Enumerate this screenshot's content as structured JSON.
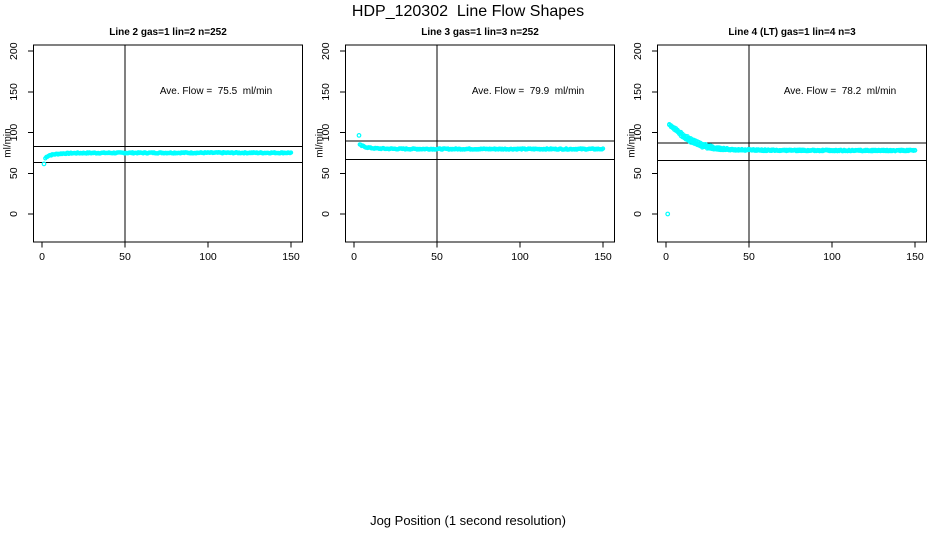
{
  "figure": {
    "title": "HDP_120302  Line Flow Shapes",
    "xlabel": "Jog Position (1 second resolution)",
    "background": "#FFFFFF",
    "point_color": "#00FFFF",
    "axis_color": "#000000"
  },
  "chart_data": [
    {
      "type": "scatter",
      "id": "line2",
      "title": "Line 2 gas=1 lin=2 n=252",
      "n": 252,
      "annotation": "Ave. Flow =  75.5  ml/min",
      "ave_flow_ml_min": 75.5,
      "ylabel": "ml/min",
      "x_ticks": [
        0,
        50,
        100,
        150
      ],
      "y_ticks": [
        0,
        50,
        100,
        150,
        200
      ],
      "xlim": [
        0,
        155
      ],
      "ylim": [
        0,
        200
      ],
      "grid": false,
      "vline_x": 50,
      "ref_lines": {
        "upper": 83,
        "lower": 63.5
      },
      "outliers": [
        [
          1.2,
          61.5
        ]
      ],
      "curve_points": [
        [
          2,
          68.5
        ],
        [
          2.6,
          70
        ],
        [
          3.5,
          71.3
        ],
        [
          5,
          72.4
        ],
        [
          7,
          73.2
        ],
        [
          10,
          73.9
        ],
        [
          14,
          74.4
        ],
        [
          20,
          74.8
        ],
        [
          30,
          75
        ],
        [
          50,
          75.1
        ],
        [
          80,
          75.2
        ],
        [
          150,
          75.2
        ]
      ],
      "points_per_series": 252,
      "series_mult": [
        1
      ],
      "x_range": [
        2,
        150
      ],
      "jitter": 0.7
    },
    {
      "type": "scatter",
      "id": "line3",
      "title": "Line 3 gas=1 lin=3 n=252",
      "n": 252,
      "annotation": "Ave. Flow =  79.9  ml/min",
      "ave_flow_ml_min": 79.9,
      "ylabel": "ml/min",
      "x_ticks": [
        0,
        50,
        100,
        150
      ],
      "y_ticks": [
        0,
        50,
        100,
        150,
        200
      ],
      "xlim": [
        0,
        155
      ],
      "ylim": [
        0,
        200
      ],
      "grid": false,
      "vline_x": 50,
      "ref_lines": {
        "upper": 89.5,
        "lower": 67
      },
      "outliers": [
        [
          3,
          96.5
        ]
      ],
      "curve_points": [
        [
          3.5,
          85
        ],
        [
          4.5,
          84
        ],
        [
          6,
          82.8
        ],
        [
          8,
          81.8
        ],
        [
          11,
          80.9
        ],
        [
          15,
          80.4
        ],
        [
          22,
          80.1
        ],
        [
          35,
          79.9
        ],
        [
          60,
          79.8
        ],
        [
          150,
          79.8
        ]
      ],
      "points_per_series": 252,
      "series_mult": [
        1
      ],
      "x_range": [
        3.5,
        150
      ],
      "jitter": 0.7
    },
    {
      "type": "scatter",
      "id": "line4",
      "title": "Line 4 (LT) gas=1 lin=4 n=3",
      "n": 3,
      "annotation": "Ave. Flow =  78.2  ml/min",
      "ave_flow_ml_min": 78.2,
      "ylabel": "ml/min",
      "x_ticks": [
        0,
        50,
        100,
        150
      ],
      "y_ticks": [
        0,
        50,
        100,
        150,
        200
      ],
      "xlim": [
        0,
        155
      ],
      "ylim": [
        0,
        200
      ],
      "grid": false,
      "vline_x": 50,
      "ref_lines": {
        "upper": 87.5,
        "lower": 65.5
      },
      "outliers": [
        [
          1,
          0
        ]
      ],
      "curve_points": [
        [
          2,
          110
        ],
        [
          3,
          108.5
        ],
        [
          4.5,
          106
        ],
        [
          6,
          103.2
        ],
        [
          8,
          99.8
        ],
        [
          10,
          96.6
        ],
        [
          12.5,
          93
        ],
        [
          15,
          90
        ],
        [
          18,
          87
        ],
        [
          21,
          84.8
        ],
        [
          25,
          82.4
        ],
        [
          30,
          80.5
        ],
        [
          36,
          79.4
        ],
        [
          45,
          78.8
        ],
        [
          60,
          78.3
        ],
        [
          80,
          78.1
        ],
        [
          110,
          78
        ],
        [
          150,
          78
        ]
      ],
      "points_per_series": 150,
      "series_mult": [
        0.88,
        1,
        1.15
      ],
      "x_range": [
        2,
        150
      ],
      "jitter": 0.8
    }
  ]
}
